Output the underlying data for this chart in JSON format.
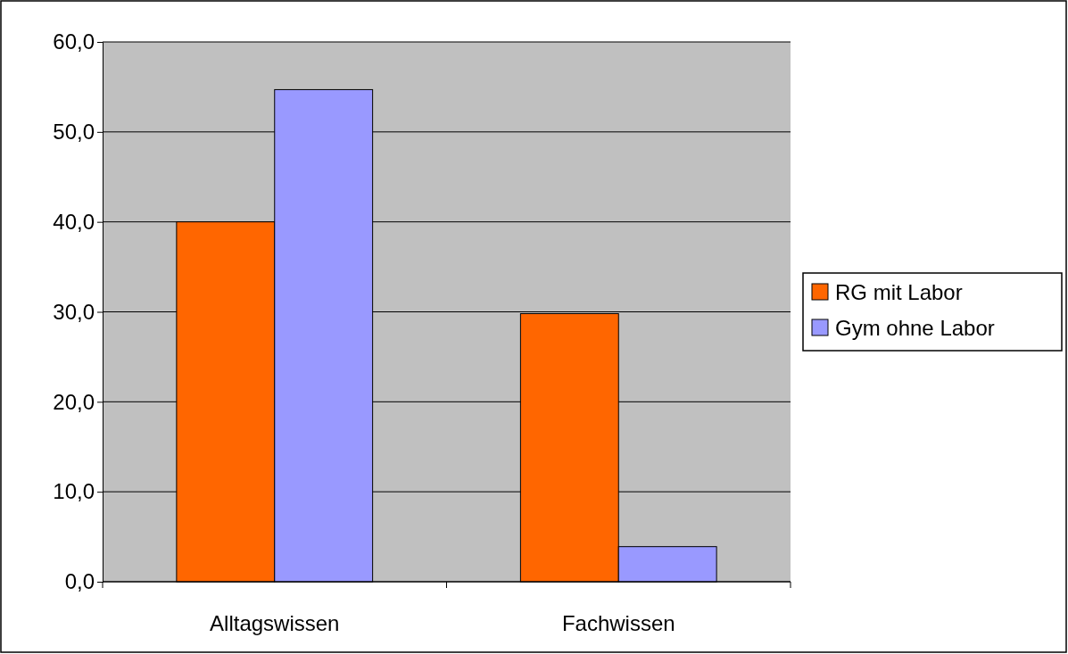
{
  "chart_data": {
    "type": "bar",
    "categories": [
      "Alltagswissen",
      "Fachwissen"
    ],
    "series": [
      {
        "name": "RG mit Labor",
        "color": "#ff6600",
        "values": [
          40.0,
          29.8
        ]
      },
      {
        "name": "Gym ohne Labor",
        "color": "#9999ff",
        "values": [
          54.7,
          3.9
        ]
      }
    ],
    "ylim": [
      0,
      60
    ],
    "yticks": [
      {
        "value": 0,
        "label": "0,0"
      },
      {
        "value": 10,
        "label": "10,0"
      },
      {
        "value": 20,
        "label": "20,0"
      },
      {
        "value": 30,
        "label": "30,0"
      },
      {
        "value": 40,
        "label": "40,0"
      },
      {
        "value": 50,
        "label": "50,0"
      },
      {
        "value": 60,
        "label": "60,0"
      }
    ],
    "grid": "y",
    "legend": "right"
  }
}
